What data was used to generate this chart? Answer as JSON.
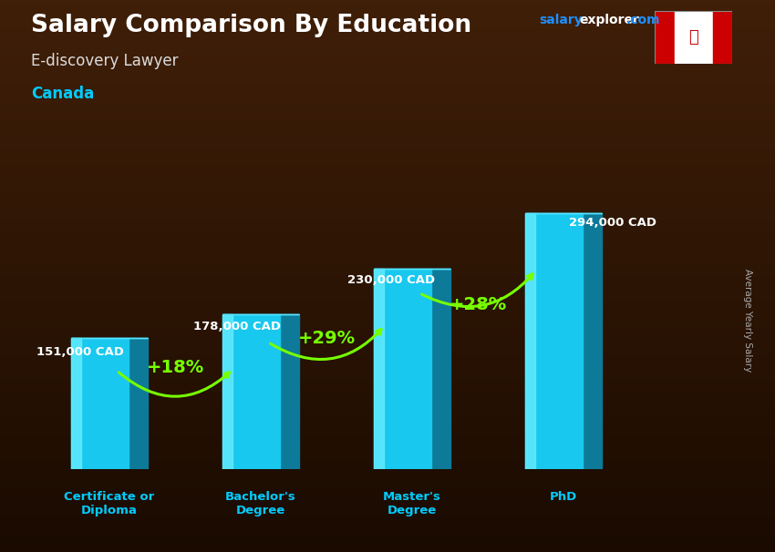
{
  "title": "Salary Comparison By Education",
  "subtitle": "E-discovery Lawyer",
  "country": "Canada",
  "ylabel": "Average Yearly Salary",
  "categories": [
    "Certificate or\nDiploma",
    "Bachelor's\nDegree",
    "Master's\nDegree",
    "PhD"
  ],
  "values": [
    151000,
    178000,
    230000,
    294000
  ],
  "value_labels": [
    "151,000 CAD",
    "178,000 CAD",
    "230,000 CAD",
    "294,000 CAD"
  ],
  "pct_changes": [
    "+18%",
    "+29%",
    "+28%"
  ],
  "bar_color_face": "#18c8ee",
  "bar_color_side": "#0e7a99",
  "bar_color_top": "#55e5ff",
  "bar_color_highlight": "#70f0ff",
  "bg_color": "#2a1005",
  "title_color": "#ffffff",
  "subtitle_color": "#dddddd",
  "country_color": "#00ccff",
  "watermark_salary_color": "#1e90ff",
  "watermark_rest_color": "#ffffff",
  "value_label_color": "#ffffff",
  "pct_color": "#77ff00",
  "xlabel_color": "#00ccff",
  "ylabel_color": "#aaaaaa",
  "ylim_max": 330000,
  "figsize": [
    8.5,
    6.06
  ],
  "dpi": 100
}
